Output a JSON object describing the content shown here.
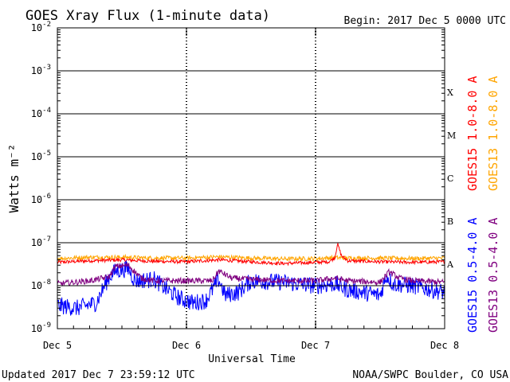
{
  "header": {
    "title": "GOES Xray Flux (1-minute data)",
    "begin": "Begin:  2017 Dec 5 0000 UTC"
  },
  "footer": {
    "updated": "Updated 2017 Dec  7 23:59:12 UTC",
    "source": "NOAA/SWPC Boulder, CO USA"
  },
  "colors": {
    "goes15_long": "#ff0000",
    "goes13_long": "#ffa500",
    "goes15_short": "#0000ff",
    "goes13_short": "#800080",
    "background": "#ffffff",
    "axes": "#000000"
  },
  "chart_data": {
    "type": "line",
    "ylabel": "Watts m⁻²",
    "xlabel": "Universal Time",
    "yscale": "log",
    "ylim": [
      1e-09,
      0.01
    ],
    "xlim": [
      0,
      3
    ],
    "x_unit": "days since 2017 Dec 5 0000 UTC",
    "x_ticks": [
      {
        "x": 0,
        "label": "Dec 5"
      },
      {
        "x": 1,
        "label": "Dec 6"
      },
      {
        "x": 2,
        "label": "Dec 7"
      },
      {
        "x": 3,
        "label": "Dec 8"
      }
    ],
    "y_ticks": [
      {
        "exp": -9,
        "label": "10",
        "sup": "-9"
      },
      {
        "exp": -8,
        "label": "10",
        "sup": "-8"
      },
      {
        "exp": -7,
        "label": "10",
        "sup": "-7"
      },
      {
        "exp": -6,
        "label": "10",
        "sup": "-6"
      },
      {
        "exp": -5,
        "label": "10",
        "sup": "-5"
      },
      {
        "exp": -4,
        "label": "10",
        "sup": "-4"
      },
      {
        "exp": -3,
        "label": "10",
        "sup": "-3"
      },
      {
        "exp": -2,
        "label": "10",
        "sup": "-2"
      }
    ],
    "flare_classes": [
      {
        "label": "A",
        "exp": -8
      },
      {
        "label": "B",
        "exp": -7
      },
      {
        "label": "C",
        "exp": -6
      },
      {
        "label": "M",
        "exp": -5
      },
      {
        "label": "X",
        "exp": -4
      }
    ],
    "grid": "horizontal lines at decades 1e-8 to 1e-3; dotted vertical lines at day boundaries",
    "legend": [
      {
        "text": "GOES15 1.0-8.0 A",
        "color": "#ff0000"
      },
      {
        "text": "GOES13 1.0-8.0 A",
        "color": "#ffa500"
      },
      {
        "text": "GOES15 0.5-4.0 A",
        "color": "#0000ff"
      },
      {
        "text": "GOES13 0.5-4.0 A",
        "color": "#800080"
      }
    ],
    "series": [
      {
        "name": "GOES15 1.0-8.0 A",
        "color": "#ff0000",
        "x": [
          0,
          0.25,
          0.5,
          0.75,
          1.0,
          1.25,
          1.5,
          1.75,
          2.0,
          2.1,
          2.15,
          2.17,
          2.2,
          2.25,
          2.5,
          2.75,
          3.0
        ],
        "y": [
          3.5e-08,
          3.8e-08,
          4e-08,
          3.7e-08,
          3.6e-08,
          4e-08,
          3.6e-08,
          3.3e-08,
          3.5e-08,
          3.6e-08,
          4.5e-08,
          9.5e-08,
          5e-08,
          3.8e-08,
          3.6e-08,
          3.5e-08,
          3.6e-08
        ]
      },
      {
        "name": "GOES13 1.0-8.0 A",
        "color": "#ffa500",
        "x": [
          0,
          0.25,
          0.5,
          0.75,
          1.0,
          1.25,
          1.5,
          1.75,
          2.0,
          2.15,
          2.25,
          2.5,
          2.75,
          3.0
        ],
        "y": [
          4.3e-08,
          4.6e-08,
          4.6e-08,
          4.4e-08,
          4.4e-08,
          4.7e-08,
          4.4e-08,
          4.2e-08,
          4.3e-08,
          4.5e-08,
          4.4e-08,
          4.4e-08,
          4.3e-08,
          4.4e-08
        ]
      },
      {
        "name": "GOES15 0.5-4.0 A",
        "color": "#0000ff",
        "x": [
          0,
          0.15,
          0.3,
          0.4,
          0.45,
          0.55,
          0.6,
          0.75,
          0.85,
          0.95,
          1.05,
          1.15,
          1.25,
          1.3,
          1.4,
          1.5,
          1.75,
          2.0,
          2.15,
          2.25,
          2.5,
          2.55,
          2.6,
          2.75,
          2.9,
          3.0
        ],
        "y": [
          3.5e-09,
          3e-09,
          4e-09,
          1.6e-08,
          2.2e-08,
          2.5e-08,
          1.3e-08,
          1.4e-08,
          8e-09,
          5e-09,
          4e-09,
          4.5e-09,
          1.4e-08,
          6e-09,
          7e-09,
          1.3e-08,
          1.2e-08,
          1e-08,
          1.1e-08,
          8e-09,
          6e-09,
          1.7e-08,
          1.1e-08,
          1e-08,
          8e-09,
          7e-09
        ]
      },
      {
        "name": "GOES13 0.5-4.0 A",
        "color": "#800080",
        "x": [
          0,
          0.25,
          0.4,
          0.45,
          0.55,
          0.65,
          0.75,
          1.0,
          1.2,
          1.25,
          1.35,
          1.5,
          1.75,
          2.0,
          2.15,
          2.25,
          2.5,
          2.57,
          2.65,
          2.75,
          3.0
        ],
        "y": [
          1.1e-08,
          1.3e-08,
          1.6e-08,
          2.8e-08,
          3e-08,
          1.5e-08,
          1.3e-08,
          1.3e-08,
          1.3e-08,
          2.2e-08,
          1.5e-08,
          1.4e-08,
          1.3e-08,
          1.3e-08,
          1.5e-08,
          1.3e-08,
          1.2e-08,
          2.1e-08,
          1.5e-08,
          1.3e-08,
          1.2e-08
        ]
      }
    ]
  }
}
